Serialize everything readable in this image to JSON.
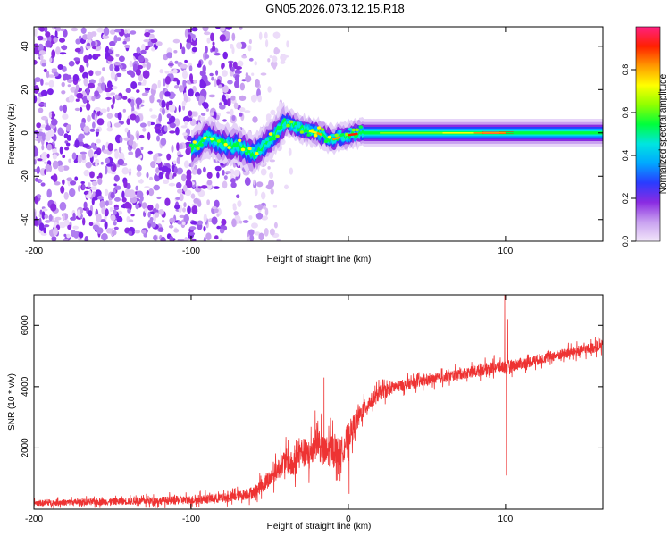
{
  "title": "GN05.2026.073.12.15.R18",
  "chart_data": [
    {
      "type": "heatmap",
      "xlabel": "Height of straight line (km)",
      "ylabel": "Frequency (Hz)",
      "xlim": [
        -200,
        162
      ],
      "ylim": [
        -50,
        49
      ],
      "x_ticks": [
        -200,
        -100,
        0,
        100
      ],
      "x_tick_labels": [
        "-200",
        "-100",
        "",
        "100"
      ],
      "y_ticks": [
        -40,
        -20,
        0,
        20,
        40
      ],
      "colorbar": {
        "label": "Normalized spectral amplitude",
        "range": [
          0,
          1
        ],
        "ticks": [
          0.0,
          0.2,
          0.4,
          0.6,
          0.8
        ],
        "tick_labels": [
          "0.0",
          "0.2",
          "0.4",
          "0.6",
          "0.8"
        ],
        "colors": [
          "#f2e6fa",
          "#c8a0f0",
          "#8a2be2",
          "#2a3cff",
          "#00a8ff",
          "#00e5e0",
          "#00ff3c",
          "#90ff00",
          "#ffff00",
          "#ff9900",
          "#ff2000",
          "#ff2080"
        ]
      },
      "noise_region": {
        "x_range": [
          -200,
          -45
        ],
        "description": "diffuse purple noise"
      },
      "signal_ridge": {
        "x": [
          -100,
          -90,
          -80,
          -70,
          -60,
          -50,
          -40,
          -30,
          -20,
          -10,
          0,
          10,
          30,
          60,
          80,
          90,
          95,
          100,
          120,
          162
        ],
        "freq": [
          -8,
          -2,
          -5,
          -6,
          -10,
          -3,
          5,
          2,
          0,
          -3,
          -1,
          0,
          0,
          0,
          0,
          0,
          0,
          0,
          0,
          0
        ]
      }
    },
    {
      "type": "line",
      "xlabel": "Height of straight line (km)",
      "ylabel": "SNR (10 * v/v)",
      "xlim": [
        -200,
        162
      ],
      "ylim": [
        0,
        7000
      ],
      "x_ticks": [
        -200,
        -100,
        0,
        100
      ],
      "y_ticks": [
        2000,
        4000,
        6000
      ],
      "series": [
        {
          "name": "SNR",
          "color": "#ee3333",
          "x": [
            -200,
            -150,
            -100,
            -75,
            -60,
            -50,
            -40,
            -35,
            -30,
            -25,
            -20,
            -15,
            -10,
            -5,
            0,
            10,
            20,
            30,
            40,
            60,
            80,
            95,
            100,
            110,
            130,
            150,
            162
          ],
          "y": [
            200,
            250,
            300,
            380,
            550,
            1000,
            1600,
            1400,
            1900,
            1700,
            2300,
            1800,
            2000,
            1800,
            2400,
            3300,
            3800,
            4000,
            4100,
            4300,
            4500,
            4650,
            4650,
            4750,
            5000,
            5200,
            5350
          ],
          "noise_amplitude": [
            120,
            140,
            180,
            200,
            250,
            350,
            500,
            550,
            600,
            650,
            700,
            700,
            650,
            600,
            550,
            350,
            300,
            250,
            220,
            220,
            230,
            260,
            260,
            230,
            220,
            220,
            220
          ],
          "spikes": [
            {
              "x": -15.5,
              "y": 4300
            },
            {
              "x": 0.5,
              "y": 500
            },
            {
              "x": 99.5,
              "y": 7000
            },
            {
              "x": 100.5,
              "y": 1100
            },
            {
              "x": 101.5,
              "y": 6200
            }
          ]
        }
      ]
    }
  ]
}
